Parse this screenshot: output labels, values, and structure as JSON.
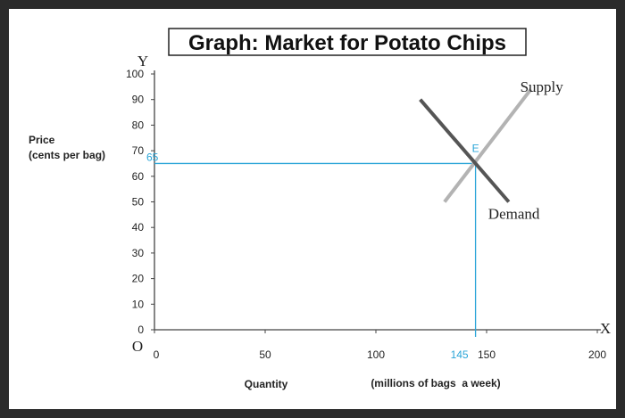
{
  "chart_data": {
    "type": "line",
    "title": "Graph: Market for Potato Chips",
    "y_axis_letter": "Y",
    "x_axis_letter": "X",
    "origin_label": "O",
    "ylabel_line1": "Price",
    "ylabel_line2": "(cents per bag)",
    "xlabel": "Quantity",
    "xlabel_units": "(millions of bags  a week)",
    "xlim": [
      0,
      200
    ],
    "ylim": [
      0,
      100
    ],
    "x_ticks": [
      0,
      50,
      100,
      150,
      200
    ],
    "y_ticks": [
      0,
      10,
      20,
      30,
      40,
      50,
      60,
      70,
      80,
      90,
      100
    ],
    "series": [
      {
        "name": "Supply",
        "x": [
          131,
          170
        ],
        "y": [
          50,
          94
        ],
        "color": "#b3b3b3"
      },
      {
        "name": "Demand",
        "x": [
          120,
          160
        ],
        "y": [
          90,
          50
        ],
        "color": "#555555"
      }
    ],
    "equilibrium": {
      "label": "E",
      "x": 145,
      "y": 65,
      "x_label": "145",
      "y_label": "65",
      "color": "#2aa5d8"
    }
  }
}
